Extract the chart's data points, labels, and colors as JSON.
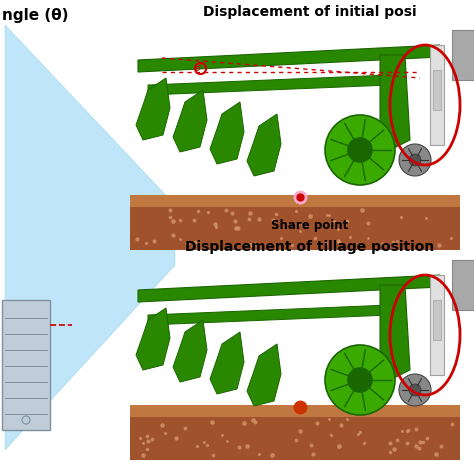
{
  "bg_color": "#ffffff",
  "title_top": "Displacement of initial posi",
  "title_bottom": "Displacement of tillage position",
  "label_angle": "ngle (θ)",
  "label_share": "Share point",
  "green_dark": "#1a6600",
  "green_mid": "#2a8800",
  "green_light": "#3aaa00",
  "soil_dark": "#8B4513",
  "soil_mid": "#a0522d",
  "soil_top_color": "#c07840",
  "soil_light_dot": "#d4956a",
  "gray_box": "#a8a8a8",
  "gray_light": "#c8c8c8",
  "red_color": "#cc0000",
  "pink_dot": "#ff8888",
  "orange_dot": "#cc3300",
  "blue_wedge": "#b8e4f8",
  "blue_wedge_edge": "#80c8e8",
  "device_face": "#c0ccd8",
  "device_edge": "#8090a0",
  "cyl_light": "#e0e0e0",
  "cyl_dark": "#a0a0a0",
  "white": "#ffffff",
  "black": "#000000",
  "dotted_red": "#cc0000",
  "text_black": "#000000"
}
